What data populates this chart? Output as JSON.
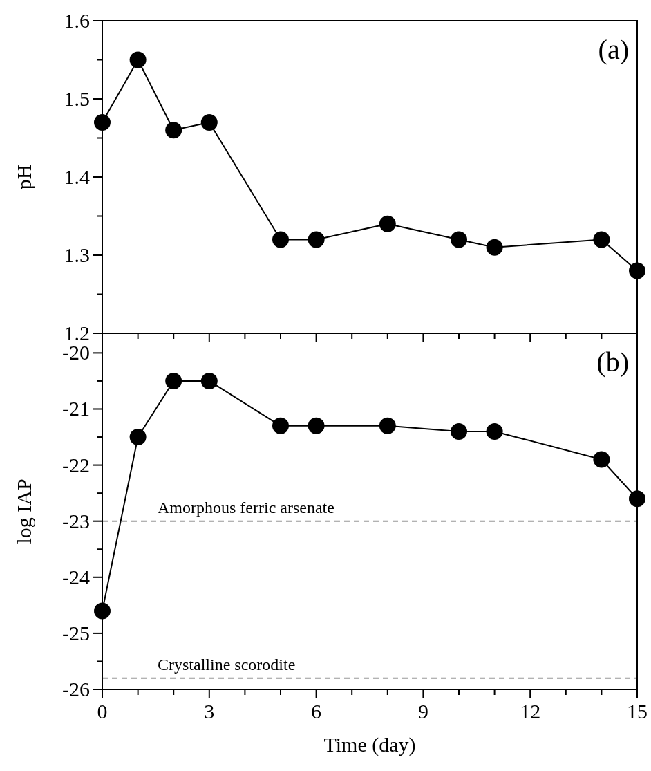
{
  "chart_data": [
    {
      "type": "line",
      "ylabel": "pH",
      "x": [
        0,
        1,
        2,
        3,
        5,
        6,
        8,
        10,
        11,
        14,
        15
      ],
      "xlim": [
        0,
        15
      ],
      "xticks": [
        0,
        {
          "value": 1,
          "label": null
        },
        {
          "value": 2,
          "label": null
        },
        3,
        {
          "value": 4,
          "label": null
        },
        {
          "value": 5,
          "label": null
        },
        6,
        {
          "value": 7,
          "label": null
        },
        {
          "value": 8,
          "label": null
        },
        9,
        {
          "value": 10,
          "label": null
        },
        {
          "value": 11,
          "label": null
        },
        12,
        {
          "value": 13,
          "label": null
        },
        {
          "value": 14,
          "label": null
        },
        15
      ],
      "ylim": [
        1.2,
        1.6
      ],
      "yticks": [
        1.2,
        {
          "value": 1.25,
          "label": null
        },
        1.3,
        {
          "value": 1.35,
          "label": null
        },
        1.4,
        {
          "value": 1.45,
          "label": null
        },
        1.5,
        {
          "value": 1.55,
          "label": null
        },
        1.6
      ],
      "tick_labels": "y",
      "marker": "circle",
      "line_style": "solid",
      "grid": false,
      "series": [
        {
          "color": "#000000",
          "values": [
            1.47,
            1.55,
            1.46,
            1.47,
            1.32,
            1.32,
            1.34,
            1.32,
            1.31,
            1.32,
            1.28
          ]
        }
      ],
      "annotations": [
        "(a)"
      ]
    },
    {
      "type": "line",
      "ylabel": "log IAP",
      "xlabel": "Time (day)",
      "x": [
        0,
        1,
        2,
        3,
        5,
        6,
        8,
        10,
        11,
        14,
        15
      ],
      "xlim": [
        0,
        15
      ],
      "xticks": [
        0,
        {
          "value": 1,
          "label": null
        },
        {
          "value": 2,
          "label": null
        },
        3,
        {
          "value": 4,
          "label": null
        },
        {
          "value": 5,
          "label": null
        },
        6,
        {
          "value": 7,
          "label": null
        },
        {
          "value": 8,
          "label": null
        },
        9,
        {
          "value": 10,
          "label": null
        },
        {
          "value": 11,
          "label": null
        },
        12,
        {
          "value": 13,
          "label": null
        },
        {
          "value": 14,
          "label": null
        },
        15
      ],
      "ylim": [
        -26,
        -19.65
      ],
      "yticks": [
        -26,
        {
          "value": -25.5,
          "label": null
        },
        -25,
        {
          "value": -24.5,
          "label": null
        },
        -24,
        {
          "value": -23.5,
          "label": null
        },
        -23,
        {
          "value": -22.5,
          "label": null
        },
        -22,
        {
          "value": -21.5,
          "label": null
        },
        -21,
        {
          "value": -20.5,
          "label": null
        },
        -20
      ],
      "marker": "circle",
      "line_style": "solid",
      "grid": false,
      "series": [
        {
          "color": "#000000",
          "values": [
            -24.6,
            -21.5,
            -20.5,
            -20.5,
            -21.3,
            -21.3,
            -21.3,
            -21.4,
            -21.4,
            -21.9,
            -22.6
          ]
        }
      ],
      "ref_lines": [
        {
          "axis": "y",
          "value": -23,
          "label": "Amorphous ferric arsenate",
          "color": "#999999",
          "line_style": "dashed"
        },
        {
          "axis": "y",
          "value": -25.8,
          "label": "Crystalline scorodite",
          "color": "#999999",
          "line_style": "dashed"
        }
      ],
      "annotations": [
        "(b)"
      ]
    }
  ]
}
